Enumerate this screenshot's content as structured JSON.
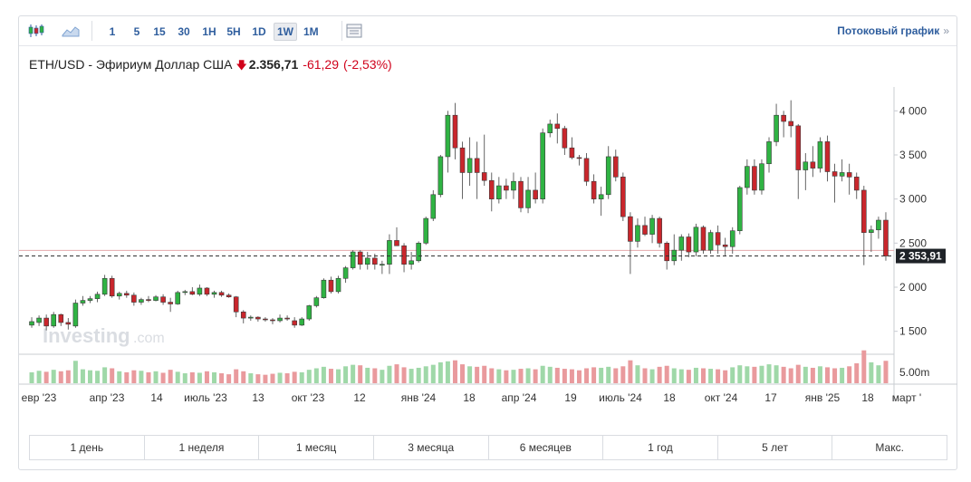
{
  "toolbar": {
    "timeframes": [
      "1",
      "5",
      "15",
      "30",
      "1H",
      "5H",
      "1D",
      "1W",
      "1M"
    ],
    "active_timeframe": "1W",
    "stream_label": "Потоковый график",
    "stream_chevron": "»"
  },
  "title": {
    "name": "ETH/USD - Эфириум Доллар США",
    "arrow": "🡇",
    "price": "2.356,71",
    "change": "-61,29",
    "change_pct": "(-2,53%)"
  },
  "watermark": {
    "brand": "Investing",
    "suffix": ".com"
  },
  "colors": {
    "up": "#2fb343",
    "down": "#c9262c",
    "vol_up": "#9fd8a8",
    "vol_down": "#e99a9d",
    "accent": "#2f5e9e"
  },
  "chart_data": {
    "type": "candlestick",
    "ylim": [
      1250,
      4250
    ],
    "y_ticks": [
      {
        "value": 4000,
        "label": "4 000"
      },
      {
        "value": 3500,
        "label": "3 500"
      },
      {
        "value": 3000,
        "label": "3 000"
      },
      {
        "value": 2500,
        "label": "2 500"
      },
      {
        "value": 2000,
        "label": "2 000"
      },
      {
        "value": 1500,
        "label": "1 500"
      }
    ],
    "last_price": 2353.91,
    "last_price_label": "2 353,91",
    "prev_close": 2418,
    "volume_label": "5.00m",
    "x_labels": [
      "евр '23",
      "апр '23",
      "14",
      "июль '23",
      "13",
      "окт '23",
      "12",
      "янв '24",
      "18",
      "апр '24",
      "19",
      "июль '24",
      "18",
      "окт '24",
      "17",
      "янв '25",
      "18",
      "март '"
    ],
    "candles": [
      {
        "o": 1570,
        "h": 1660,
        "l": 1540,
        "c": 1610
      },
      {
        "o": 1600,
        "h": 1680,
        "l": 1560,
        "c": 1650
      },
      {
        "o": 1650,
        "h": 1690,
        "l": 1510,
        "c": 1560
      },
      {
        "o": 1560,
        "h": 1720,
        "l": 1540,
        "c": 1690
      },
      {
        "o": 1690,
        "h": 1700,
        "l": 1560,
        "c": 1600
      },
      {
        "o": 1600,
        "h": 1650,
        "l": 1520,
        "c": 1580
      },
      {
        "o": 1560,
        "h": 1860,
        "l": 1540,
        "c": 1820
      },
      {
        "o": 1820,
        "h": 1900,
        "l": 1790,
        "c": 1850
      },
      {
        "o": 1850,
        "h": 1900,
        "l": 1820,
        "c": 1870
      },
      {
        "o": 1870,
        "h": 1950,
        "l": 1830,
        "c": 1920
      },
      {
        "o": 1920,
        "h": 2140,
        "l": 1900,
        "c": 2100
      },
      {
        "o": 2100,
        "h": 2130,
        "l": 1880,
        "c": 1900
      },
      {
        "o": 1900,
        "h": 1950,
        "l": 1860,
        "c": 1930
      },
      {
        "o": 1930,
        "h": 1960,
        "l": 1880,
        "c": 1910
      },
      {
        "o": 1910,
        "h": 1940,
        "l": 1790,
        "c": 1830
      },
      {
        "o": 1830,
        "h": 1880,
        "l": 1800,
        "c": 1860
      },
      {
        "o": 1860,
        "h": 1900,
        "l": 1830,
        "c": 1850
      },
      {
        "o": 1850,
        "h": 1910,
        "l": 1840,
        "c": 1890
      },
      {
        "o": 1890,
        "h": 1920,
        "l": 1800,
        "c": 1830
      },
      {
        "o": 1830,
        "h": 1880,
        "l": 1720,
        "c": 1810
      },
      {
        "o": 1810,
        "h": 1960,
        "l": 1800,
        "c": 1940
      },
      {
        "o": 1940,
        "h": 1970,
        "l": 1910,
        "c": 1950
      },
      {
        "o": 1950,
        "h": 2000,
        "l": 1910,
        "c": 1920
      },
      {
        "o": 1920,
        "h": 2030,
        "l": 1900,
        "c": 1990
      },
      {
        "o": 1990,
        "h": 2000,
        "l": 1900,
        "c": 1920
      },
      {
        "o": 1920,
        "h": 1960,
        "l": 1880,
        "c": 1940
      },
      {
        "o": 1940,
        "h": 1960,
        "l": 1890,
        "c": 1910
      },
      {
        "o": 1910,
        "h": 1930,
        "l": 1880,
        "c": 1890
      },
      {
        "o": 1890,
        "h": 1900,
        "l": 1660,
        "c": 1720
      },
      {
        "o": 1720,
        "h": 1740,
        "l": 1590,
        "c": 1650
      },
      {
        "o": 1650,
        "h": 1680,
        "l": 1620,
        "c": 1660
      },
      {
        "o": 1660,
        "h": 1670,
        "l": 1610,
        "c": 1640
      },
      {
        "o": 1640,
        "h": 1660,
        "l": 1610,
        "c": 1630
      },
      {
        "o": 1630,
        "h": 1650,
        "l": 1580,
        "c": 1620
      },
      {
        "o": 1620,
        "h": 1690,
        "l": 1600,
        "c": 1650
      },
      {
        "o": 1650,
        "h": 1680,
        "l": 1620,
        "c": 1640
      },
      {
        "o": 1620,
        "h": 1660,
        "l": 1540,
        "c": 1570
      },
      {
        "o": 1570,
        "h": 1660,
        "l": 1560,
        "c": 1640
      },
      {
        "o": 1640,
        "h": 1800,
        "l": 1620,
        "c": 1790
      },
      {
        "o": 1790,
        "h": 1900,
        "l": 1770,
        "c": 1880
      },
      {
        "o": 1880,
        "h": 2100,
        "l": 1870,
        "c": 2080
      },
      {
        "o": 2080,
        "h": 2120,
        "l": 1930,
        "c": 1950
      },
      {
        "o": 1950,
        "h": 2130,
        "l": 1930,
        "c": 2100
      },
      {
        "o": 2100,
        "h": 2240,
        "l": 2050,
        "c": 2220
      },
      {
        "o": 2220,
        "h": 2420,
        "l": 2200,
        "c": 2400
      },
      {
        "o": 2400,
        "h": 2420,
        "l": 2200,
        "c": 2260
      },
      {
        "o": 2260,
        "h": 2400,
        "l": 2200,
        "c": 2330
      },
      {
        "o": 2330,
        "h": 2380,
        "l": 2200,
        "c": 2260
      },
      {
        "o": 2260,
        "h": 2300,
        "l": 2150,
        "c": 2260
      },
      {
        "o": 2260,
        "h": 2600,
        "l": 2150,
        "c": 2530
      },
      {
        "o": 2530,
        "h": 2680,
        "l": 2480,
        "c": 2470
      },
      {
        "o": 2470,
        "h": 2500,
        "l": 2170,
        "c": 2260
      },
      {
        "o": 2260,
        "h": 2400,
        "l": 2200,
        "c": 2300
      },
      {
        "o": 2300,
        "h": 2520,
        "l": 2280,
        "c": 2500
      },
      {
        "o": 2500,
        "h": 2800,
        "l": 2480,
        "c": 2780
      },
      {
        "o": 2780,
        "h": 3100,
        "l": 2750,
        "c": 3050
      },
      {
        "o": 3050,
        "h": 3500,
        "l": 3020,
        "c": 3480
      },
      {
        "o": 3480,
        "h": 4000,
        "l": 3300,
        "c": 3950
      },
      {
        "o": 3950,
        "h": 4090,
        "l": 3450,
        "c": 3580
      },
      {
        "o": 3580,
        "h": 3650,
        "l": 3000,
        "c": 3300
      },
      {
        "o": 3300,
        "h": 3700,
        "l": 3150,
        "c": 3460
      },
      {
        "o": 3460,
        "h": 3650,
        "l": 3000,
        "c": 3300
      },
      {
        "o": 3300,
        "h": 3730,
        "l": 3150,
        "c": 3210
      },
      {
        "o": 3210,
        "h": 3300,
        "l": 2860,
        "c": 3000
      },
      {
        "o": 3000,
        "h": 3250,
        "l": 2950,
        "c": 3150
      },
      {
        "o": 3150,
        "h": 3230,
        "l": 3000,
        "c": 3100
      },
      {
        "o": 3100,
        "h": 3300,
        "l": 3000,
        "c": 3200
      },
      {
        "o": 3200,
        "h": 3250,
        "l": 2850,
        "c": 2900
      },
      {
        "o": 2900,
        "h": 3250,
        "l": 2840,
        "c": 3100
      },
      {
        "o": 3100,
        "h": 3300,
        "l": 2950,
        "c": 3000
      },
      {
        "o": 3000,
        "h": 3800,
        "l": 2950,
        "c": 3750
      },
      {
        "o": 3750,
        "h": 3900,
        "l": 3700,
        "c": 3850
      },
      {
        "o": 3850,
        "h": 3970,
        "l": 3630,
        "c": 3800
      },
      {
        "o": 3800,
        "h": 3830,
        "l": 3500,
        "c": 3580
      },
      {
        "o": 3580,
        "h": 3700,
        "l": 3450,
        "c": 3470
      },
      {
        "o": 3470,
        "h": 3500,
        "l": 3380,
        "c": 3460
      },
      {
        "o": 3460,
        "h": 3520,
        "l": 3150,
        "c": 3200
      },
      {
        "o": 3200,
        "h": 3280,
        "l": 2950,
        "c": 3000
      },
      {
        "o": 3000,
        "h": 3140,
        "l": 2810,
        "c": 3050
      },
      {
        "o": 3050,
        "h": 3600,
        "l": 3000,
        "c": 3480
      },
      {
        "o": 3480,
        "h": 3560,
        "l": 3200,
        "c": 3250
      },
      {
        "o": 3250,
        "h": 3300,
        "l": 2750,
        "c": 2800
      },
      {
        "o": 2800,
        "h": 2850,
        "l": 2150,
        "c": 2520
      },
      {
        "o": 2520,
        "h": 2780,
        "l": 2450,
        "c": 2700
      },
      {
        "o": 2700,
        "h": 2800,
        "l": 2580,
        "c": 2600
      },
      {
        "o": 2600,
        "h": 2820,
        "l": 2500,
        "c": 2780
      },
      {
        "o": 2780,
        "h": 2800,
        "l": 2450,
        "c": 2500
      },
      {
        "o": 2500,
        "h": 2520,
        "l": 2200,
        "c": 2300
      },
      {
        "o": 2300,
        "h": 2600,
        "l": 2250,
        "c": 2420
      },
      {
        "o": 2420,
        "h": 2600,
        "l": 2300,
        "c": 2570
      },
      {
        "o": 2570,
        "h": 2610,
        "l": 2340,
        "c": 2400
      },
      {
        "o": 2400,
        "h": 2720,
        "l": 2350,
        "c": 2680
      },
      {
        "o": 2680,
        "h": 2700,
        "l": 2380,
        "c": 2420
      },
      {
        "o": 2420,
        "h": 2650,
        "l": 2380,
        "c": 2620
      },
      {
        "o": 2620,
        "h": 2700,
        "l": 2380,
        "c": 2480
      },
      {
        "o": 2480,
        "h": 2560,
        "l": 2350,
        "c": 2460
      },
      {
        "o": 2460,
        "h": 2680,
        "l": 2380,
        "c": 2640
      },
      {
        "o": 2640,
        "h": 3150,
        "l": 2600,
        "c": 3130
      },
      {
        "o": 3130,
        "h": 3450,
        "l": 3050,
        "c": 3370
      },
      {
        "o": 3370,
        "h": 3450,
        "l": 3050,
        "c": 3100
      },
      {
        "o": 3100,
        "h": 3450,
        "l": 3050,
        "c": 3400
      },
      {
        "o": 3400,
        "h": 3700,
        "l": 3300,
        "c": 3650
      },
      {
        "o": 3650,
        "h": 4080,
        "l": 3600,
        "c": 3950
      },
      {
        "o": 3950,
        "h": 4000,
        "l": 3700,
        "c": 3880
      },
      {
        "o": 3880,
        "h": 4120,
        "l": 3700,
        "c": 3830
      },
      {
        "o": 3830,
        "h": 3850,
        "l": 3000,
        "c": 3330
      },
      {
        "o": 3330,
        "h": 3520,
        "l": 3100,
        "c": 3420
      },
      {
        "o": 3420,
        "h": 3600,
        "l": 3250,
        "c": 3350
      },
      {
        "o": 3350,
        "h": 3700,
        "l": 3300,
        "c": 3650
      },
      {
        "o": 3650,
        "h": 3720,
        "l": 3200,
        "c": 3310
      },
      {
        "o": 3310,
        "h": 3400,
        "l": 2960,
        "c": 3260
      },
      {
        "o": 3260,
        "h": 3450,
        "l": 3200,
        "c": 3300
      },
      {
        "o": 3300,
        "h": 3400,
        "l": 3050,
        "c": 3250
      },
      {
        "o": 3250,
        "h": 3300,
        "l": 3000,
        "c": 3100
      },
      {
        "o": 3100,
        "h": 3150,
        "l": 2250,
        "c": 2620
      },
      {
        "o": 2620,
        "h": 2700,
        "l": 2400,
        "c": 2650
      },
      {
        "o": 2650,
        "h": 2800,
        "l": 2550,
        "c": 2760
      },
      {
        "o": 2760,
        "h": 2850,
        "l": 2300,
        "c": 2354
      }
    ],
    "volumes": [
      0.22,
      0.25,
      0.23,
      0.27,
      0.24,
      0.26,
      0.45,
      0.28,
      0.26,
      0.25,
      0.32,
      0.3,
      0.24,
      0.22,
      0.26,
      0.25,
      0.22,
      0.24,
      0.21,
      0.27,
      0.23,
      0.2,
      0.22,
      0.21,
      0.24,
      0.22,
      0.2,
      0.18,
      0.28,
      0.24,
      0.2,
      0.18,
      0.17,
      0.19,
      0.21,
      0.2,
      0.23,
      0.22,
      0.27,
      0.3,
      0.33,
      0.29,
      0.28,
      0.34,
      0.37,
      0.36,
      0.31,
      0.3,
      0.27,
      0.35,
      0.38,
      0.32,
      0.29,
      0.31,
      0.34,
      0.37,
      0.42,
      0.44,
      0.46,
      0.38,
      0.34,
      0.33,
      0.35,
      0.3,
      0.28,
      0.26,
      0.27,
      0.29,
      0.3,
      0.28,
      0.35,
      0.33,
      0.31,
      0.29,
      0.28,
      0.26,
      0.3,
      0.32,
      0.31,
      0.33,
      0.3,
      0.34,
      0.46,
      0.36,
      0.3,
      0.28,
      0.33,
      0.35,
      0.3,
      0.28,
      0.27,
      0.31,
      0.3,
      0.29,
      0.28,
      0.26,
      0.32,
      0.36,
      0.34,
      0.33,
      0.35,
      0.38,
      0.36,
      0.33,
      0.3,
      0.37,
      0.33,
      0.31,
      0.34,
      0.32,
      0.3,
      0.31,
      0.34,
      0.4,
      0.66,
      0.42,
      0.36,
      0.45
    ]
  },
  "ranges": [
    "1 день",
    "1 неделя",
    "1 месяц",
    "3 месяца",
    "6 месяцев",
    "1 год",
    "5 лет",
    "Макс."
  ]
}
